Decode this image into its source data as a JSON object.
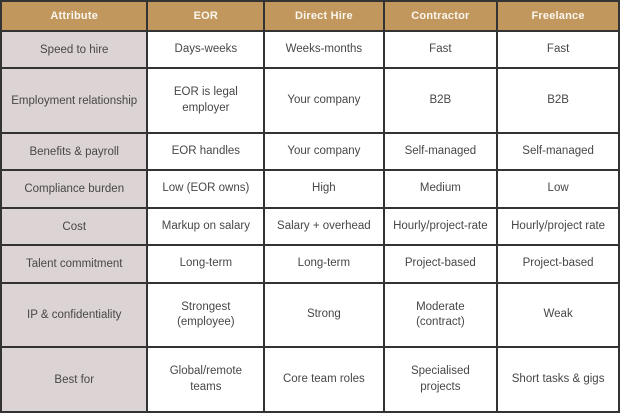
{
  "colors": {
    "header_bg": "#c2975e",
    "header_text": "#fbf7ee",
    "attribute_column_bg": "#dcd3d4",
    "cell_bg": "#ffffff",
    "border": "#333333",
    "text": "#474747"
  },
  "table": {
    "headers": [
      "Attribute",
      "EOR",
      "Direct Hire",
      "Contractor",
      "Freelance"
    ],
    "rows": [
      {
        "attribute": "Speed to hire",
        "values": [
          "Days-weeks",
          "Weeks-months",
          "Fast",
          "Fast"
        ]
      },
      {
        "attribute": "Employment relationship",
        "values": [
          "EOR is legal employer",
          "Your company",
          "B2B",
          "B2B"
        ]
      },
      {
        "attribute": "Benefits & payroll",
        "values": [
          "EOR handles",
          "Your company",
          "Self-managed",
          "Self-managed"
        ]
      },
      {
        "attribute": "Compliance burden",
        "values": [
          "Low (EOR owns)",
          "High",
          "Medium",
          "Low"
        ]
      },
      {
        "attribute": "Cost",
        "values": [
          "Markup on salary",
          "Salary + overhead",
          "Hourly/project-rate",
          "Hourly/project rate"
        ]
      },
      {
        "attribute": "Talent commitment",
        "values": [
          "Long-term",
          "Long-term",
          "Project-based",
          "Project-based"
        ]
      },
      {
        "attribute": "IP & confidentiality",
        "values": [
          "Strongest (employee)",
          "Strong",
          "Moderate (contract)",
          "Weak"
        ]
      },
      {
        "attribute": "Best for",
        "values": [
          "Global/remote teams",
          "Core team roles",
          "Specialised projects",
          "Short tasks & gigs"
        ]
      }
    ]
  },
  "chart_data": {
    "type": "table",
    "title": "",
    "columns": [
      "Attribute",
      "EOR",
      "Direct Hire",
      "Contractor",
      "Freelance"
    ],
    "rows": [
      [
        "Speed to hire",
        "Days-weeks",
        "Weeks-months",
        "Fast",
        "Fast"
      ],
      [
        "Employment relationship",
        "EOR is legal employer",
        "Your company",
        "B2B",
        "B2B"
      ],
      [
        "Benefits & payroll",
        "EOR handles",
        "Your company",
        "Self-managed",
        "Self-managed"
      ],
      [
        "Compliance burden",
        "Low (EOR owns)",
        "High",
        "Medium",
        "Low"
      ],
      [
        "Cost",
        "Markup on salary",
        "Salary + overhead",
        "Hourly/project-rate",
        "Hourly/project rate"
      ],
      [
        "Talent commitment",
        "Long-term",
        "Long-term",
        "Project-based",
        "Project-based"
      ],
      [
        "IP & confidentiality",
        "Strongest (employee)",
        "Strong",
        "Moderate (contract)",
        "Weak"
      ],
      [
        "Best for",
        "Global/remote teams",
        "Core team roles",
        "Specialised projects",
        "Short tasks & gigs"
      ]
    ]
  }
}
